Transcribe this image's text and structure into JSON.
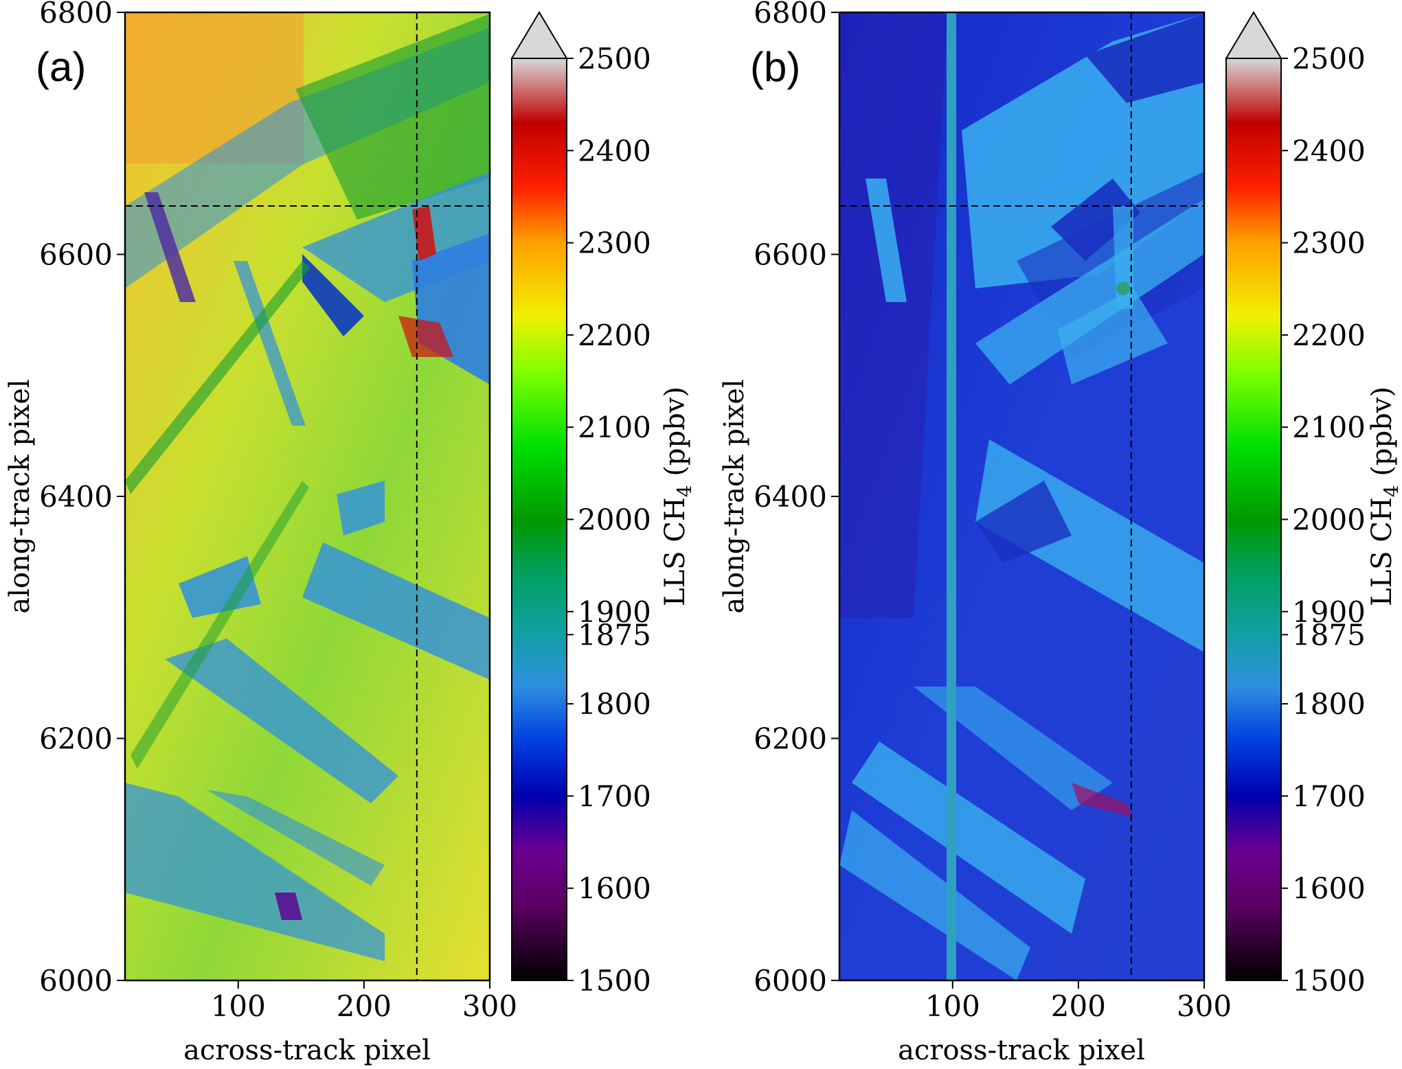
{
  "chart_data": [
    {
      "type": "heatmap",
      "panel_label": "(a)",
      "xlabel": "across-track pixel",
      "ylabel": "along-track pixel",
      "xlim": [
        10,
        300
      ],
      "ylim": [
        6000,
        6800
      ],
      "x_ticks": [
        100,
        200,
        300
      ],
      "y_ticks": [
        6000,
        6200,
        6400,
        6600,
        6800
      ],
      "crosshair": {
        "x": 242,
        "y": 6640
      },
      "colorbar": {
        "label_prefix": "LLS CH",
        "label_sub": "4",
        "label_suffix": " (ppbv)",
        "range": [
          1500,
          2500
        ],
        "extend": "max",
        "ticks": [
          1500,
          1600,
          1700,
          1800,
          1875,
          1900,
          2000,
          2100,
          2200,
          2300,
          2400,
          2500
        ]
      },
      "description_values": {
        "background_typical_ppbv": 2150,
        "field_features_ppbv": 1800,
        "hotspot_max_ppbv": 2450
      }
    },
    {
      "type": "heatmap",
      "panel_label": "(b)",
      "xlabel": "across-track pixel",
      "ylabel": "along-track pixel",
      "xlim": [
        10,
        300
      ],
      "ylim": [
        6000,
        6800
      ],
      "x_ticks": [
        100,
        200,
        300
      ],
      "y_ticks": [
        6000,
        6200,
        6400,
        6600,
        6800
      ],
      "crosshair": {
        "x": 242,
        "y": 6640
      },
      "colorbar": {
        "label_prefix": "LLS CH",
        "label_sub": "4",
        "label_suffix": " (ppbv)",
        "range": [
          1500,
          2500
        ],
        "extend": "max",
        "ticks": [
          1500,
          1600,
          1700,
          1800,
          1875,
          1900,
          2000,
          2100,
          2200,
          2300,
          2400,
          2500
        ]
      },
      "description_values": {
        "background_typical_ppbv": 1700,
        "field_features_ppbv": 1800,
        "hotspot_max_ppbv": 2050
      }
    }
  ]
}
